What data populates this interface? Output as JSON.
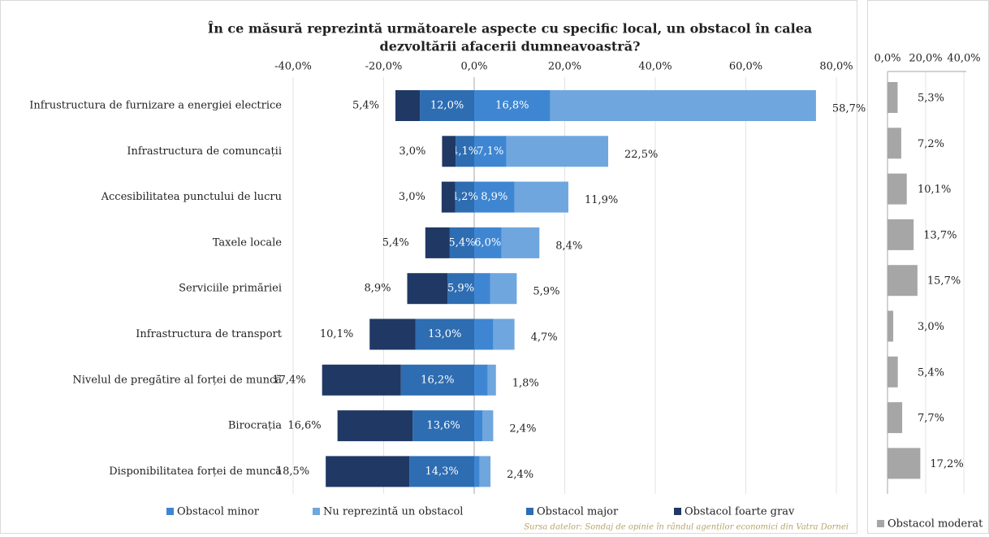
{
  "chart_data": [
    {
      "type": "diverging_bar",
      "title": [
        "În ce măsură reprezintă următoarele aspecte cu specific local, un obstacol în calea",
        "dezvoltării afacerii dumneavoastră?"
      ],
      "categories": [
        "Infrustructura de furnizare a energiei electrice",
        "Infrastructura de comuncații",
        "Accesibilitatea punctului de lucru",
        "Taxele locale",
        "Serviciile primăriei",
        "Infrastructura de transport",
        "Nivelul de pregătire al forței de muncă",
        "Birocrația",
        "Disponibilitatea forței de muncă"
      ],
      "series": [
        {
          "name": "Obstacol minor",
          "color": "#3f86d2",
          "side": "right",
          "values": [
            16.8,
            7.1,
            8.9,
            6.0,
            3.5,
            4.2,
            3.0,
            1.8,
            1.2
          ],
          "value_labels": [
            "16,8%",
            "7,1%",
            "8,9%",
            "6,0%",
            null,
            null,
            null,
            null,
            null
          ]
        },
        {
          "name": "Nu reprezintă un obstacol",
          "color": "#6fa6de",
          "side": "right",
          "values": [
            58.7,
            22.5,
            11.9,
            8.4,
            5.9,
            4.7,
            1.8,
            2.4,
            2.4
          ],
          "value_labels": [
            "58,7%",
            "22,5%",
            "11,9%",
            "8,4%",
            "5,9%",
            "4,7%",
            "1,8%",
            "2,4%",
            "2,4%"
          ]
        },
        {
          "name": "Obstacol major",
          "color": "#2e6db2",
          "side": "left",
          "values": [
            12.0,
            4.1,
            4.2,
            5.4,
            5.9,
            13.0,
            16.2,
            13.6,
            14.3
          ],
          "value_labels": [
            "12,0%",
            "4,1%",
            "4,2%",
            "5,4%",
            "5,9%",
            "13,0%",
            "16,2%",
            "13,6%",
            "14,3%"
          ]
        },
        {
          "name": "Obstacol foarte grav",
          "color": "#203864",
          "side": "left",
          "values": [
            5.4,
            3.0,
            3.0,
            5.4,
            8.9,
            10.1,
            17.4,
            16.6,
            18.5
          ],
          "value_labels": [
            "5,4%",
            "3,0%",
            "3,0%",
            "5,4%",
            "8,9%",
            "10,1%",
            "17,4%",
            "16,6%",
            "18,5%"
          ]
        }
      ],
      "xlim": [
        -40,
        80
      ],
      "xticks": [
        {
          "value": -40,
          "label": "-40,0%"
        },
        {
          "value": -20,
          "label": "-20,0%"
        },
        {
          "value": 0,
          "label": "0,0%"
        },
        {
          "value": 20,
          "label": "20,0%"
        },
        {
          "value": 40,
          "label": "40,0%"
        },
        {
          "value": 60,
          "label": "60,0%"
        },
        {
          "value": 80,
          "label": "80,0%"
        }
      ],
      "grid": true,
      "source": "Sursa datelor: Sondaj de opinie în rândul agenților economici din  Vatra Dornei"
    },
    {
      "type": "bar_h",
      "series": [
        {
          "name": "Obstacol moderat",
          "color": "#a6a6a6",
          "values": [
            5.3,
            7.2,
            10.1,
            13.7,
            15.7,
            3.0,
            5.4,
            7.7,
            17.2
          ],
          "value_labels": [
            "5,3%",
            "7,2%",
            "10,1%",
            "13,7%",
            "15,7%",
            "3,0%",
            "5,4%",
            "7,7%",
            "17,2%"
          ]
        }
      ],
      "xlim": [
        0,
        40
      ],
      "xticks": [
        {
          "value": 0,
          "label": "0,0%"
        },
        {
          "value": 20,
          "label": "20,0%"
        },
        {
          "value": 40,
          "label": "40,0%"
        }
      ],
      "grid": true
    }
  ]
}
